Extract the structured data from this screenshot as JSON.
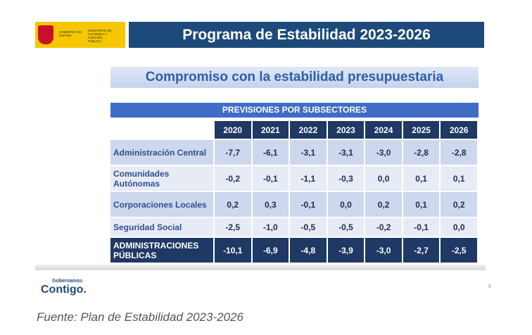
{
  "header": {
    "logo_gov": "GOBIERNO DE ESPAÑA",
    "logo_ministry": "MINISTERIO DE HACIENDA Y FUNCIÓN PÚBLICA",
    "title": "Programa de Estabilidad 2023-2026"
  },
  "subtitle": "Compromiso con la estabilidad presupuestaria",
  "table": {
    "caption": "PREVISIONES POR SUBSECTORES",
    "columns": [
      "2020",
      "2021",
      "2022",
      "2023",
      "2024",
      "2025",
      "2026"
    ],
    "rows": [
      [
        "Administración Central",
        "-7,7",
        "-6,1",
        "-3,1",
        "-3,1",
        "-3,0",
        "-2,8",
        "-2,8"
      ],
      [
        "Comunidades Autónomas",
        "-0,2",
        "-0,1",
        "-1,1",
        "-0,3",
        "0,0",
        "0,1",
        "0,1"
      ],
      [
        "Corporaciones Locales",
        "0,2",
        "0,3",
        "-0,1",
        "0,0",
        "0,2",
        "0,1",
        "0,2"
      ],
      [
        "Seguridad Social",
        "-2,5",
        "-1,0",
        "-0,5",
        "-0,5",
        "-0,2",
        "-0,1",
        "0,0"
      ],
      [
        "ADMINISTRACIONES PÚBLICAS",
        "-10,1",
        "-6,9",
        "-4,8",
        "-3,9",
        "-3,0",
        "-2,7",
        "-2,5"
      ]
    ]
  },
  "footer": {
    "logo_small": "Gobernamos",
    "logo_big": "Contigo.",
    "page": "6"
  },
  "source": "Fuente: Plan de Estabilidad 2023-2026"
}
